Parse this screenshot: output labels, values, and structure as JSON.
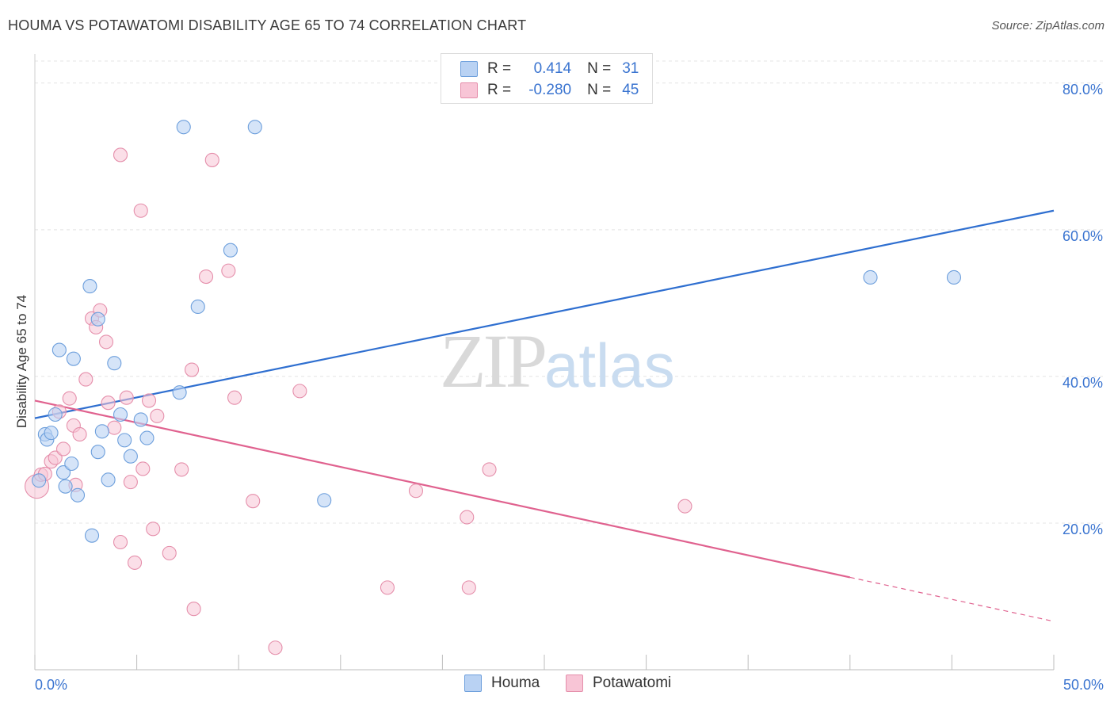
{
  "header": {
    "title": "HOUMA VS POTAWATOMI DISABILITY AGE 65 TO 74 CORRELATION CHART",
    "source": "Source: ZipAtlas.com"
  },
  "watermark": {
    "zip": "ZIP",
    "atlas": "atlas"
  },
  "stats": {
    "houma": {
      "r_label": "R =",
      "r_value": "0.414",
      "n_label": "N =",
      "n_value": "31"
    },
    "potawatomi": {
      "r_label": "R =",
      "r_value": "-0.280",
      "n_label": "N =",
      "n_value": "45"
    }
  },
  "legend": {
    "houma": "Houma",
    "potawatomi": "Potawatomi"
  },
  "colors": {
    "houma_fill": "#b9d2f3",
    "houma_stroke": "#6d9fdc",
    "houma_line": "#2f6fd0",
    "potawatomi_fill": "#f8c5d6",
    "potawatomi_stroke": "#e58fab",
    "potawatomi_line": "#e0628f",
    "grid": "#e4e4e4",
    "tick_label": "#3a74d0"
  },
  "chart_data": {
    "type": "scatter",
    "title": "HOUMA VS POTAWATOMI DISABILITY AGE 65 TO 74 CORRELATION CHART",
    "xlabel": "",
    "ylabel": "Disability Age 65 to 74",
    "xlim": [
      0,
      50
    ],
    "ylim": [
      0,
      83
    ],
    "x_tick_labels": [
      {
        "value": 0,
        "label": "0.0%"
      },
      {
        "value": 50,
        "label": "50.0%"
      }
    ],
    "y_tick_labels": [
      {
        "value": 20,
        "label": "20.0%"
      },
      {
        "value": 40,
        "label": "40.0%"
      },
      {
        "value": 60,
        "label": "60.0%"
      },
      {
        "value": 80,
        "label": "80.0%"
      }
    ],
    "x_minor_ticks": [
      5,
      10,
      15,
      20,
      25,
      30,
      35,
      40,
      45
    ],
    "grid": "horizontal dashed",
    "legend_position": "bottom-center",
    "series": [
      {
        "name": "Houma",
        "points": [
          [
            0.2,
            25.8
          ],
          [
            0.5,
            32.1
          ],
          [
            0.6,
            31.4
          ],
          [
            0.8,
            32.3
          ],
          [
            1.0,
            34.8
          ],
          [
            1.2,
            43.6
          ],
          [
            1.4,
            26.9
          ],
          [
            1.5,
            25.0
          ],
          [
            1.8,
            28.1
          ],
          [
            1.9,
            42.4
          ],
          [
            2.1,
            23.8
          ],
          [
            2.7,
            52.3
          ],
          [
            2.8,
            18.3
          ],
          [
            3.1,
            29.7
          ],
          [
            3.1,
            47.8
          ],
          [
            3.3,
            32.5
          ],
          [
            3.6,
            25.9
          ],
          [
            3.9,
            41.8
          ],
          [
            4.2,
            34.8
          ],
          [
            4.4,
            31.3
          ],
          [
            4.7,
            29.1
          ],
          [
            5.2,
            34.1
          ],
          [
            5.5,
            31.6
          ],
          [
            7.1,
            37.8
          ],
          [
            7.3,
            74.0
          ],
          [
            8.0,
            49.5
          ],
          [
            9.6,
            57.2
          ],
          [
            10.8,
            74.0
          ],
          [
            14.2,
            23.1
          ],
          [
            41.0,
            53.5
          ],
          [
            45.1,
            53.5
          ]
        ],
        "trend": {
          "x": [
            0,
            50
          ],
          "y": [
            34.3,
            62.6
          ]
        }
      },
      {
        "name": "Potawatomi",
        "points": [
          [
            0.1,
            25.0
          ],
          [
            0.3,
            26.6
          ],
          [
            0.5,
            26.7
          ],
          [
            0.8,
            28.4
          ],
          [
            1.0,
            28.9
          ],
          [
            1.2,
            35.2
          ],
          [
            1.4,
            30.1
          ],
          [
            1.7,
            37.0
          ],
          [
            1.9,
            33.3
          ],
          [
            2.0,
            25.2
          ],
          [
            2.2,
            32.1
          ],
          [
            2.5,
            39.6
          ],
          [
            2.8,
            47.9
          ],
          [
            3.0,
            46.7
          ],
          [
            3.2,
            49.0
          ],
          [
            3.5,
            44.7
          ],
          [
            3.6,
            36.4
          ],
          [
            3.9,
            33.0
          ],
          [
            4.2,
            17.4
          ],
          [
            4.2,
            70.2
          ],
          [
            4.5,
            37.1
          ],
          [
            4.7,
            25.6
          ],
          [
            4.9,
            14.6
          ],
          [
            5.2,
            62.6
          ],
          [
            5.3,
            27.4
          ],
          [
            5.6,
            36.7
          ],
          [
            5.8,
            19.2
          ],
          [
            6.0,
            34.6
          ],
          [
            6.6,
            15.9
          ],
          [
            7.2,
            27.3
          ],
          [
            7.7,
            40.9
          ],
          [
            7.8,
            8.3
          ],
          [
            8.4,
            53.6
          ],
          [
            8.7,
            69.5
          ],
          [
            9.5,
            54.4
          ],
          [
            9.8,
            37.1
          ],
          [
            10.7,
            23.0
          ],
          [
            11.8,
            3.0
          ],
          [
            13.0,
            38.0
          ],
          [
            17.3,
            11.2
          ],
          [
            18.7,
            24.4
          ],
          [
            21.2,
            20.8
          ],
          [
            21.3,
            11.2
          ],
          [
            22.3,
            27.3
          ],
          [
            31.9,
            22.3
          ]
        ],
        "trend": {
          "x": [
            0,
            40
          ],
          "y": [
            36.7,
            12.6
          ]
        },
        "trend_extension": {
          "x": [
            40,
            50
          ],
          "y": [
            12.6,
            6.6
          ]
        }
      }
    ]
  }
}
